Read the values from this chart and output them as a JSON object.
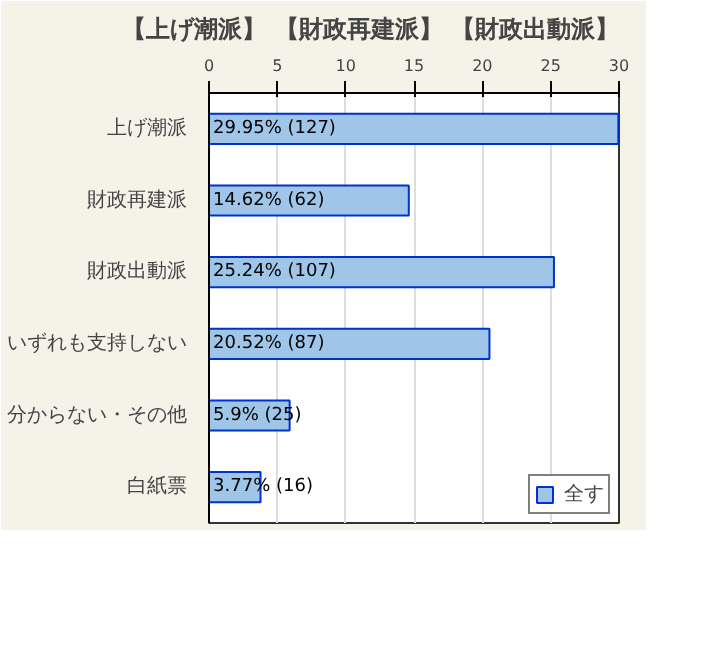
{
  "chart_data": {
    "type": "bar",
    "orientation": "horizontal",
    "title": "【上げ潮派】 【財政再建派】 【財政出動派】",
    "categories": [
      "上げ潮派",
      "財政再建派",
      "財政出動派",
      "いずれも支持しない",
      "分からない・その他",
      "白紙票"
    ],
    "series": [
      {
        "name": "全す",
        "color": "#9fc5e8",
        "values": [
          29.95,
          14.62,
          25.24,
          20.52,
          5.9,
          3.77
        ],
        "value_labels": [
          "29.95% (127)",
          "14.62% (62)",
          "25.24% (107)",
          "20.52% (87)",
          "5.9% (25)",
          "3.77% (16)"
        ]
      }
    ],
    "xlim": [
      0,
      30
    ],
    "xticks": [
      0,
      5,
      10,
      15,
      20,
      25,
      30
    ],
    "grid": "x",
    "legend": "bottom right"
  }
}
